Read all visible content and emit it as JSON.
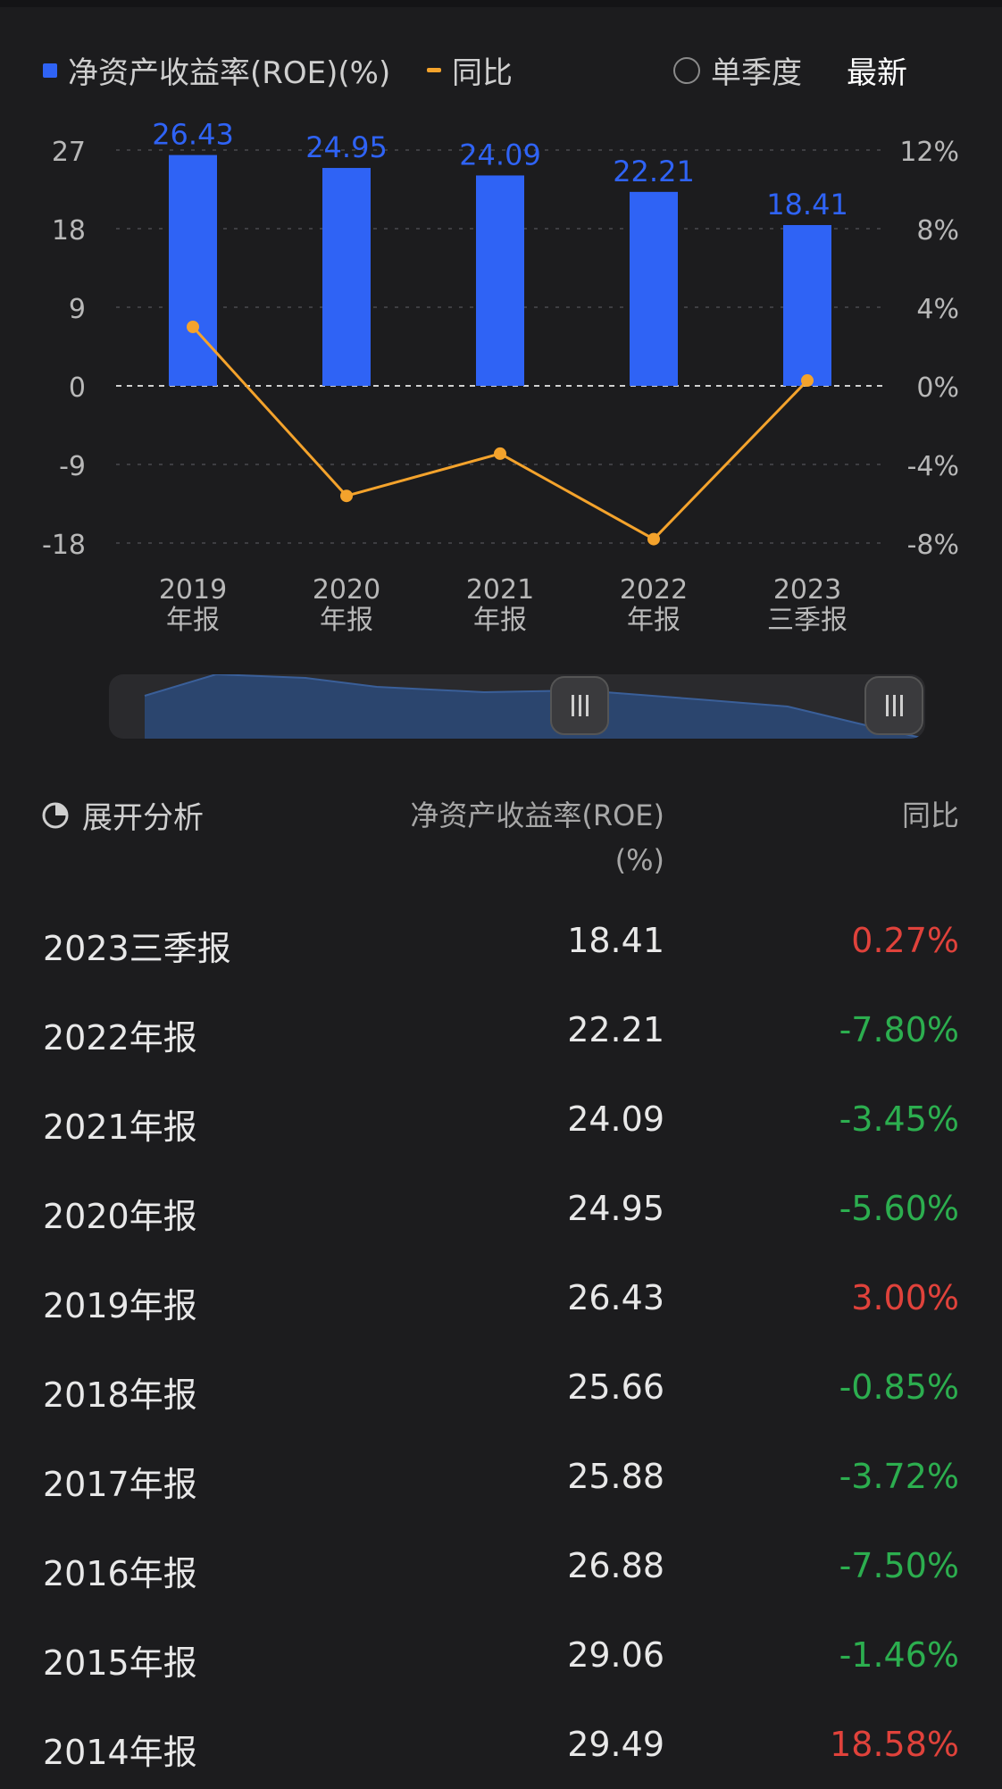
{
  "legend": {
    "roe_label": "净资产收益率(ROE)(%)",
    "yoy_label": "同比",
    "quarter_label": "单季度",
    "latest_label": "最新"
  },
  "colors": {
    "bar": "#2f63f5",
    "line": "#f4a32c",
    "positive": "#e0423b",
    "negative": "#2cae4f"
  },
  "chart_data": {
    "type": "bar",
    "categories": [
      "2019\n年报",
      "2020\n年报",
      "2021\n年报",
      "2022\n年报",
      "2023\n三季报"
    ],
    "series": [
      {
        "name": "净资产收益率(ROE)(%)",
        "type": "bar",
        "axis": "left",
        "values": [
          26.43,
          24.95,
          24.09,
          22.21,
          18.41
        ]
      },
      {
        "name": "同比",
        "type": "line",
        "axis": "right",
        "values": [
          3.0,
          -5.6,
          -3.45,
          -7.8,
          0.27
        ]
      }
    ],
    "left_axis": {
      "ticks": [
        "27",
        "18",
        "9",
        "0",
        "-9",
        "-18"
      ],
      "range": [
        -18,
        27
      ]
    },
    "right_axis": {
      "ticks": [
        "12%",
        "8%",
        "4%",
        "0%",
        "-4%",
        "-8%"
      ],
      "range": [
        -8,
        12
      ]
    },
    "bar_labels": [
      "26.43",
      "24.95",
      "24.09",
      "22.21",
      "18.41"
    ]
  },
  "table": {
    "header": {
      "expand_label": "展开分析",
      "roe_col": "净资产收益率(ROE)(%)",
      "yoy_col": "同比"
    },
    "rows": [
      {
        "period": "2023三季报",
        "roe": "18.41",
        "yoy": "0.27%",
        "sign": "pos"
      },
      {
        "period": "2022年报",
        "roe": "22.21",
        "yoy": "-7.80%",
        "sign": "neg"
      },
      {
        "period": "2021年报",
        "roe": "24.09",
        "yoy": "-3.45%",
        "sign": "neg"
      },
      {
        "period": "2020年报",
        "roe": "24.95",
        "yoy": "-5.60%",
        "sign": "neg"
      },
      {
        "period": "2019年报",
        "roe": "26.43",
        "yoy": "3.00%",
        "sign": "pos"
      },
      {
        "period": "2018年报",
        "roe": "25.66",
        "yoy": "-0.85%",
        "sign": "neg"
      },
      {
        "period": "2017年报",
        "roe": "25.88",
        "yoy": "-3.72%",
        "sign": "neg"
      },
      {
        "period": "2016年报",
        "roe": "26.88",
        "yoy": "-7.50%",
        "sign": "neg"
      },
      {
        "period": "2015年报",
        "roe": "29.06",
        "yoy": "-1.46%",
        "sign": "neg"
      },
      {
        "period": "2014年报",
        "roe": "29.49",
        "yoy": "18.58%",
        "sign": "pos"
      }
    ]
  }
}
